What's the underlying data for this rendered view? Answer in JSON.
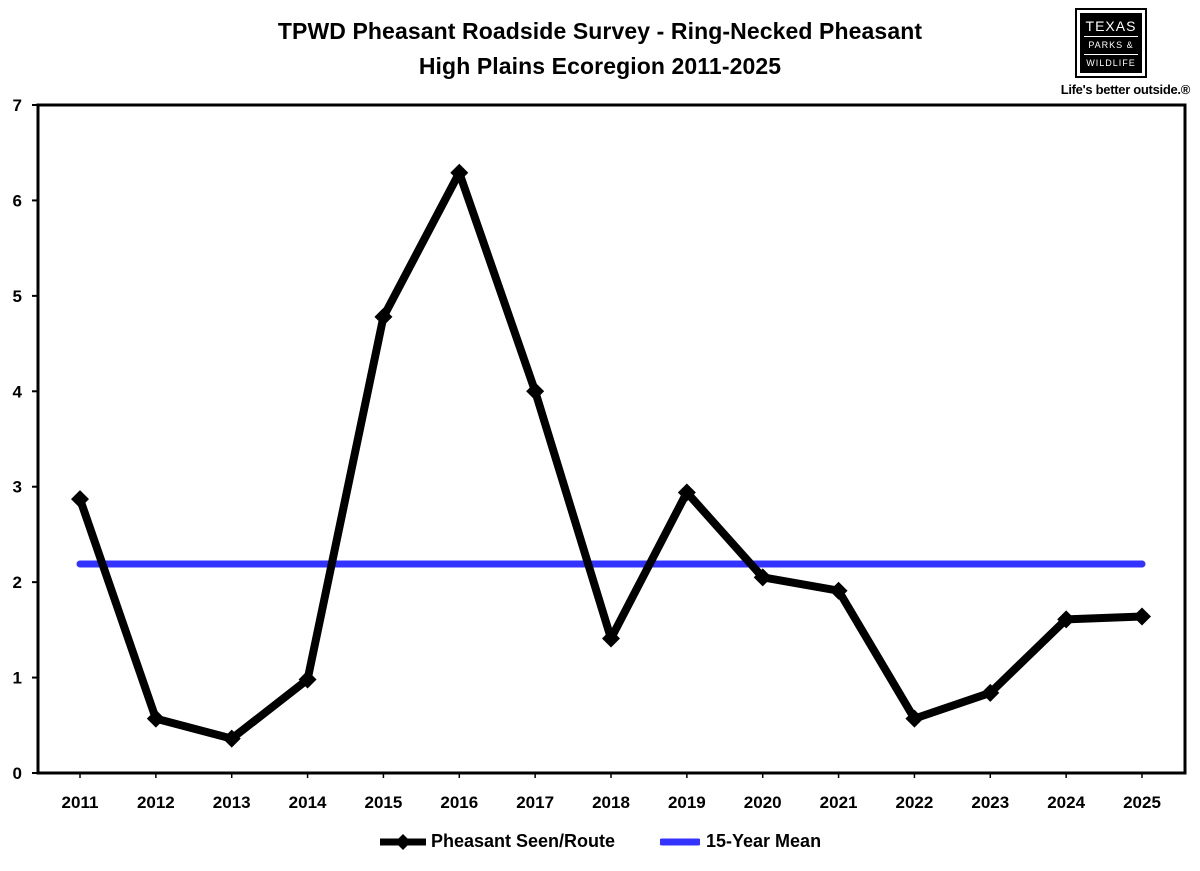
{
  "chart_data": {
    "type": "line",
    "title": "TPWD Pheasant Roadside Survey - Ring-Necked Pheasant",
    "subtitle": "High Plains Ecoregion 2011-2025",
    "x": [
      "2011",
      "2012",
      "2013",
      "2014",
      "2015",
      "2016",
      "2017",
      "2018",
      "2019",
      "2020",
      "2021",
      "2022",
      "2023",
      "2024",
      "2025"
    ],
    "series": [
      {
        "name": "Pheasant Seen/Route",
        "color": "#000000",
        "marker": "diamond",
        "values": [
          2.87,
          0.57,
          0.36,
          0.98,
          4.78,
          6.29,
          4.0,
          1.41,
          2.94,
          2.05,
          1.91,
          0.57,
          0.84,
          1.61,
          1.64
        ]
      },
      {
        "name": "15-Year Mean",
        "color": "#3333ff",
        "marker": "none",
        "values": [
          2.19,
          2.19,
          2.19,
          2.19,
          2.19,
          2.19,
          2.19,
          2.19,
          2.19,
          2.19,
          2.19,
          2.19,
          2.19,
          2.19,
          2.19
        ]
      }
    ],
    "yticks": [
      "0",
      "1",
      "2",
      "3",
      "4",
      "5",
      "6",
      "7"
    ],
    "ylim": [
      0,
      7
    ],
    "grid": false,
    "legend_position": "bottom"
  },
  "logo": {
    "line1": "TEXAS",
    "line2": "PARKS &",
    "line3": "WILDLIFE",
    "tagline": "Life's better outside.®"
  }
}
